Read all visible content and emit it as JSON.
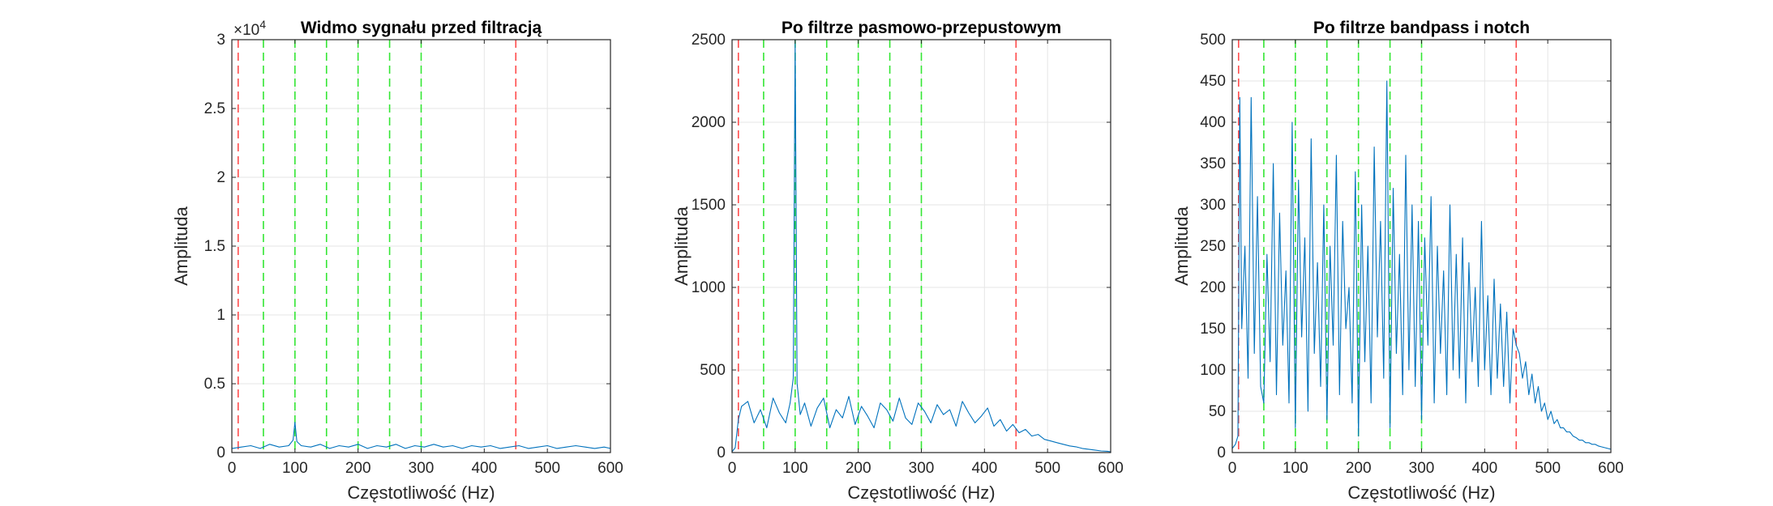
{
  "figure": {
    "background": "#ffffff",
    "colors": {
      "spectrum": "#0072BD",
      "marker_red": "#FF4C4C",
      "marker_green": "#33E633",
      "grid": "#e6e6e6",
      "axis": "#262626"
    }
  },
  "chart_data": [
    {
      "type": "line",
      "title": "Widmo sygnału przed filtracją",
      "xlabel": "Częstotliwość (Hz)",
      "ylabel": "Amplituda",
      "xlim": [
        0,
        600
      ],
      "ylim": [
        0,
        3
      ],
      "y_multiplier": "×10",
      "y_multiplier_exponent": "4",
      "xticks": [
        0,
        100,
        200,
        300,
        400,
        500,
        600
      ],
      "xtick_labels": [
        "0",
        "100",
        "200",
        "300",
        "400",
        "500",
        "600"
      ],
      "yticks": [
        0,
        0.5,
        1,
        1.5,
        2,
        2.5,
        3
      ],
      "ytick_labels": [
        "0",
        "0.5",
        "1",
        "1.5",
        "2",
        "2.5",
        "3"
      ],
      "grid": true,
      "markers_red_x": [
        10,
        450
      ],
      "markers_green_x": [
        50,
        100,
        150,
        200,
        250,
        300
      ],
      "series": [
        {
          "x": [
            0,
            15,
            30,
            45,
            60,
            75,
            90,
            97,
            100,
            103,
            110,
            125,
            140,
            155,
            170,
            185,
            200,
            215,
            230,
            245,
            260,
            275,
            290,
            305,
            320,
            335,
            350,
            365,
            380,
            395,
            410,
            425,
            440,
            455,
            470,
            485,
            500,
            515,
            530,
            545,
            560,
            575,
            590,
            600
          ],
          "y": [
            0.03,
            0.04,
            0.05,
            0.03,
            0.06,
            0.04,
            0.05,
            0.09,
            0.22,
            0.08,
            0.05,
            0.04,
            0.06,
            0.03,
            0.05,
            0.04,
            0.06,
            0.03,
            0.05,
            0.04,
            0.06,
            0.03,
            0.05,
            0.04,
            0.06,
            0.04,
            0.05,
            0.03,
            0.05,
            0.04,
            0.05,
            0.03,
            0.04,
            0.05,
            0.03,
            0.04,
            0.05,
            0.03,
            0.04,
            0.05,
            0.04,
            0.03,
            0.04,
            0.03
          ]
        }
      ]
    },
    {
      "type": "line",
      "title": "Po filtrze pasmowo-przepustowym",
      "xlabel": "Częstotliwość (Hz)",
      "ylabel": "Amplituda",
      "xlim": [
        0,
        600
      ],
      "ylim": [
        0,
        2500
      ],
      "xticks": [
        0,
        100,
        200,
        300,
        400,
        500,
        600
      ],
      "xtick_labels": [
        "0",
        "100",
        "200",
        "300",
        "400",
        "500",
        "600"
      ],
      "yticks": [
        0,
        500,
        1000,
        1500,
        2000,
        2500
      ],
      "ytick_labels": [
        "0",
        "500",
        "1000",
        "1500",
        "2000",
        "2500"
      ],
      "grid": true,
      "markers_red_x": [
        10,
        450
      ],
      "markers_green_x": [
        50,
        100,
        150,
        200,
        250,
        300
      ],
      "series": [
        {
          "x": [
            0,
            5,
            10,
            15,
            25,
            35,
            45,
            55,
            65,
            75,
            85,
            92,
            97,
            100,
            103,
            108,
            115,
            125,
            135,
            145,
            155,
            165,
            175,
            185,
            195,
            205,
            215,
            225,
            235,
            245,
            255,
            265,
            275,
            285,
            295,
            305,
            315,
            325,
            335,
            345,
            355,
            365,
            375,
            385,
            395,
            405,
            415,
            425,
            435,
            445,
            455,
            465,
            475,
            485,
            495,
            505,
            515,
            525,
            535,
            545,
            555,
            565,
            575,
            585,
            595,
            600
          ],
          "y": [
            5,
            30,
            200,
            280,
            310,
            180,
            260,
            150,
            330,
            240,
            180,
            300,
            450,
            2500,
            420,
            230,
            300,
            160,
            270,
            330,
            150,
            260,
            210,
            340,
            170,
            280,
            220,
            150,
            300,
            260,
            190,
            330,
            210,
            170,
            300,
            250,
            180,
            290,
            230,
            260,
            160,
            310,
            240,
            180,
            220,
            270,
            160,
            200,
            130,
            170,
            120,
            140,
            100,
            110,
            80,
            70,
            60,
            50,
            40,
            35,
            25,
            20,
            15,
            10,
            8,
            5
          ]
        }
      ]
    },
    {
      "type": "line",
      "title": "Po filtrze bandpass i notch",
      "xlabel": "Częstotliwość (Hz)",
      "ylabel": "Amplituda",
      "xlim": [
        0,
        600
      ],
      "ylim": [
        0,
        500
      ],
      "xticks": [
        0,
        100,
        200,
        300,
        400,
        500,
        600
      ],
      "xtick_labels": [
        "0",
        "100",
        "200",
        "300",
        "400",
        "500",
        "600"
      ],
      "yticks": [
        0,
        50,
        100,
        150,
        200,
        250,
        300,
        350,
        400,
        450,
        500
      ],
      "ytick_labels": [
        "0",
        "50",
        "100",
        "150",
        "200",
        "250",
        "300",
        "350",
        "400",
        "450",
        "500"
      ],
      "grid": true,
      "markers_red_x": [
        10,
        450
      ],
      "markers_green_x": [
        50,
        100,
        150,
        200,
        250,
        300
      ],
      "series": [
        {
          "x": [
            0,
            5,
            9,
            12,
            15,
            20,
            25,
            30,
            35,
            40,
            45,
            50,
            55,
            60,
            65,
            70,
            75,
            80,
            85,
            90,
            95,
            100,
            105,
            110,
            115,
            120,
            125,
            130,
            135,
            140,
            145,
            150,
            155,
            160,
            165,
            170,
            175,
            180,
            185,
            190,
            195,
            200,
            205,
            210,
            215,
            220,
            225,
            230,
            235,
            240,
            245,
            250,
            255,
            260,
            265,
            270,
            275,
            280,
            285,
            290,
            295,
            300,
            305,
            310,
            315,
            320,
            325,
            330,
            335,
            340,
            345,
            350,
            355,
            360,
            365,
            370,
            375,
            380,
            385,
            390,
            395,
            400,
            405,
            410,
            415,
            420,
            425,
            430,
            435,
            440,
            445,
            450,
            455,
            460,
            465,
            470,
            475,
            480,
            485,
            490,
            495,
            500,
            505,
            510,
            515,
            520,
            525,
            530,
            535,
            540,
            545,
            550,
            555,
            560,
            565,
            570,
            575,
            580,
            585,
            590,
            595,
            600
          ],
          "y": [
            5,
            10,
            20,
            430,
            150,
            250,
            90,
            430,
            120,
            310,
            80,
            60,
            240,
            110,
            350,
            70,
            290,
            130,
            220,
            60,
            400,
            30,
            330,
            140,
            260,
            50,
            380,
            120,
            230,
            80,
            300,
            40,
            250,
            130,
            360,
            70,
            280,
            150,
            200,
            60,
            340,
            20,
            300,
            110,
            250,
            60,
            370,
            140,
            280,
            90,
            450,
            30,
            320,
            120,
            240,
            70,
            360,
            100,
            300,
            80,
            280,
            40,
            260,
            130,
            310,
            60,
            250,
            120,
            220,
            70,
            300,
            100,
            240,
            90,
            260,
            60,
            230,
            110,
            200,
            80,
            280,
            100,
            190,
            70,
            210,
            90,
            180,
            80,
            170,
            60,
            150,
            130,
            120,
            90,
            110,
            70,
            95,
            60,
            80,
            50,
            60,
            40,
            50,
            35,
            40,
            30,
            30,
            25,
            25,
            20,
            18,
            15,
            15,
            12,
            12,
            10,
            10,
            8,
            7,
            6,
            5,
            4
          ]
        }
      ]
    }
  ]
}
